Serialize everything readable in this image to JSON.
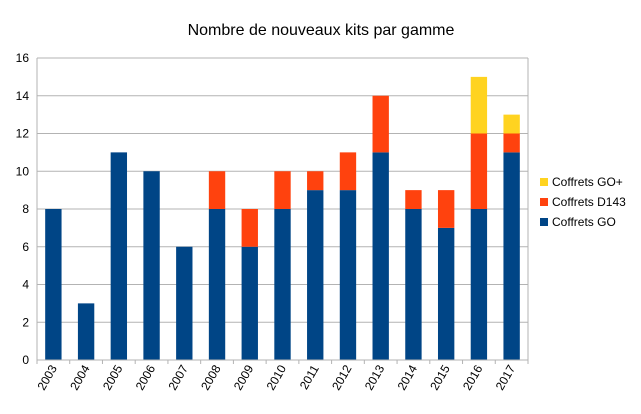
{
  "chart_data": {
    "type": "bar",
    "stacked": true,
    "title": "Nombre de nouveaux kits par gamme",
    "xlabel": "",
    "ylabel": "",
    "categories": [
      "2003",
      "2004",
      "2005",
      "2006",
      "2007",
      "2008",
      "2009",
      "2010",
      "2011",
      "2012",
      "2013",
      "2014",
      "2015",
      "2016",
      "2017"
    ],
    "series": [
      {
        "name": "Coffrets GO",
        "color": "#004586",
        "values": [
          8,
          3,
          11,
          10,
          6,
          8,
          6,
          8,
          9,
          9,
          11,
          8,
          7,
          8,
          11
        ]
      },
      {
        "name": "Coffrets D143",
        "color": "#FF420E",
        "values": [
          0,
          0,
          0,
          0,
          0,
          2,
          2,
          2,
          1,
          2,
          3,
          1,
          2,
          4,
          1
        ]
      },
      {
        "name": "Coffrets GO+",
        "color": "#FFD320",
        "values": [
          0,
          0,
          0,
          0,
          0,
          0,
          0,
          0,
          0,
          0,
          0,
          0,
          0,
          3,
          1
        ]
      }
    ],
    "ylim": [
      0,
      16
    ],
    "yticks": [
      0,
      2,
      4,
      6,
      8,
      10,
      12,
      14,
      16
    ],
    "grid": true,
    "legend_position": "right",
    "gridline_color": "#b3b3b3"
  }
}
